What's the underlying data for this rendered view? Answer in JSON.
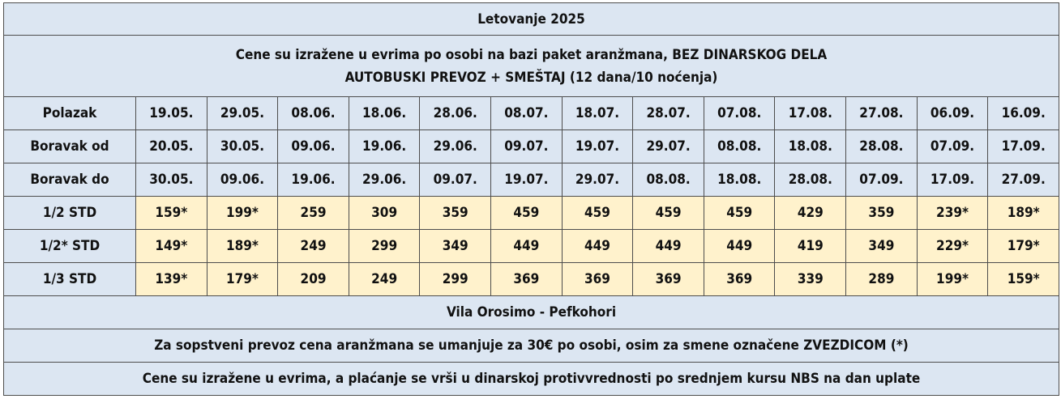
{
  "title": "Letovanje 2025",
  "subtitle_line1": "Cene su izražene u evrima po osobi na bazi paket aranžmana, BEZ DINARSKOG DELA",
  "subtitle_line2": "AUTOBUSKI PREVOZ + SMEŠTAJ (12 dana/10 noćenja)",
  "rows": [
    {
      "label": "Polazak",
      "values": [
        "19.05.",
        "29.05.",
        "08.06.",
        "18.06.",
        "28.06.",
        "08.07.",
        "18.07.",
        "28.07.",
        "07.08.",
        "17.08.",
        "27.08.",
        "06.09.",
        "16.09."
      ]
    },
    {
      "label": "Boravak od",
      "values": [
        "20.05.",
        "30.05.",
        "09.06.",
        "19.06.",
        "29.06.",
        "09.07.",
        "19.07.",
        "29.07.",
        "08.08.",
        "18.08.",
        "28.08.",
        "07.09.",
        "17.09."
      ]
    },
    {
      "label": "Boravak do",
      "values": [
        "30.05.",
        "09.06.",
        "19.06.",
        "29.06.",
        "09.07.",
        "19.07.",
        "29.07.",
        "08.08.",
        "18.08.",
        "28.08.",
        "07.09.",
        "17.09.",
        "27.09."
      ]
    },
    {
      "label": "1/2 STD",
      "values": [
        "159*",
        "199*",
        "259",
        "309",
        "359",
        "459",
        "459",
        "459",
        "459",
        "429",
        "359",
        "239*",
        "189*"
      ]
    },
    {
      "label": "1/2* STD",
      "values": [
        "149*",
        "189*",
        "249",
        "299",
        "349",
        "449",
        "449",
        "449",
        "449",
        "419",
        "349",
        "229*",
        "179*"
      ]
    },
    {
      "label": "1/3 STD",
      "values": [
        "139*",
        "179*",
        "209",
        "249",
        "299",
        "369",
        "369",
        "369",
        "369",
        "339",
        "289",
        "199*",
        "159*"
      ]
    }
  ],
  "property": "Vila Orosimo - Pefkohori",
  "note_transport": "Za sopstveni prevoz cena aranžmana se umanjuje za 30€ po osobi, osim za smene označene ZVEZDICOM (*)",
  "note_payment": "Cene su izražene u evrima, a plaćanje se vrši u dinarskoj protivvrednosti po srednjem kursu NBS na dan uplate",
  "colors": {
    "header_bg": "#dce6f2",
    "price_bg": "#fff2cc",
    "border": "#4d4d4d"
  }
}
